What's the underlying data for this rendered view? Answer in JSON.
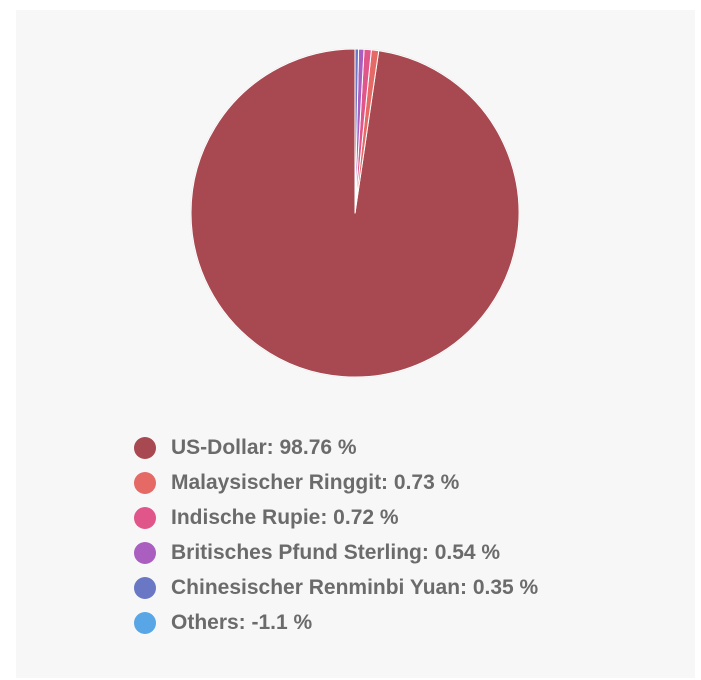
{
  "chart_data": {
    "type": "pie",
    "slices": [
      {
        "label": "US-Dollar",
        "value": 98.76,
        "color": "#a84850"
      },
      {
        "label": "Malaysischer Ringgit",
        "value": 0.73,
        "color": "#e56a66"
      },
      {
        "label": "Indische Rupie",
        "value": 0.72,
        "color": "#e0568a"
      },
      {
        "label": "Britisches Pfund Sterling",
        "value": 0.54,
        "color": "#aa5ec0"
      },
      {
        "label": "Chinesischer Renminbi Yuan",
        "value": 0.35,
        "color": "#6a77c4"
      },
      {
        "label": "Others",
        "value": -1.1,
        "color": "#58a6e6"
      }
    ],
    "legend_position": "bottom",
    "unit": "%"
  },
  "legend": [
    {
      "text": "US-Dollar: 98.76 %"
    },
    {
      "text": "Malaysischer Ringgit: 0.73 %"
    },
    {
      "text": "Indische Rupie: 0.72 %"
    },
    {
      "text": "Britisches Pfund Sterling: 0.54 %"
    },
    {
      "text": "Chinesischer Renminbi Yuan: 0.35 %"
    },
    {
      "text": "Others: -1.1 %"
    }
  ]
}
